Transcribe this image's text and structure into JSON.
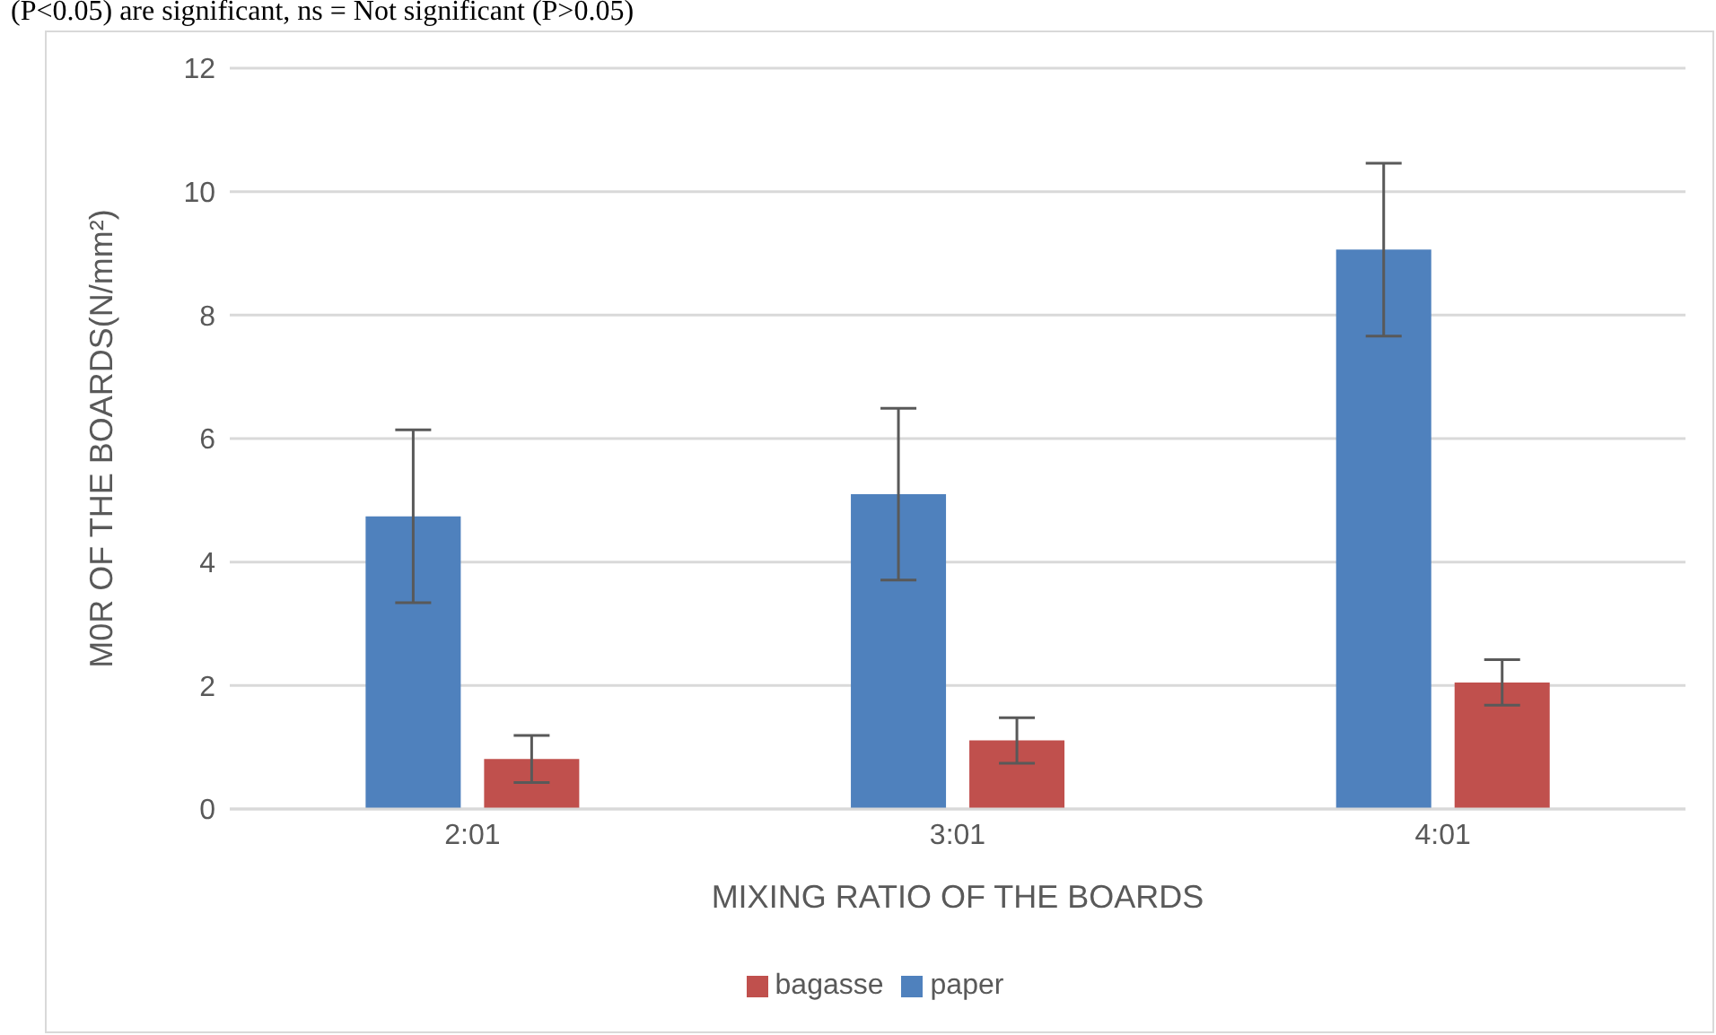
{
  "chart_data": {
    "type": "bar",
    "annotations": [
      "(P<0.05) are significant, ns = Not significant (P>0.05)"
    ],
    "xlabel": "MIXING RATIO OF THE BOARDS",
    "ylabel": "M0R OF THE BOARDS(N/mm²)",
    "categories": [
      "2:01",
      "3:01",
      "4:01"
    ],
    "series": [
      {
        "name": "paper",
        "color": "#4f81bd",
        "values": [
          4.74,
          5.1,
          9.06
        ],
        "errors": [
          1.4,
          1.39,
          1.4
        ]
      },
      {
        "name": "bagasse",
        "color": "#c0504d",
        "values": [
          0.81,
          1.11,
          2.05
        ],
        "errors": [
          0.38,
          0.37,
          0.37
        ]
      }
    ],
    "ylim": [
      0,
      12
    ],
    "yticks": [
      0,
      2,
      4,
      6,
      8,
      10,
      12
    ],
    "grid": "y",
    "legend": "bottom"
  }
}
